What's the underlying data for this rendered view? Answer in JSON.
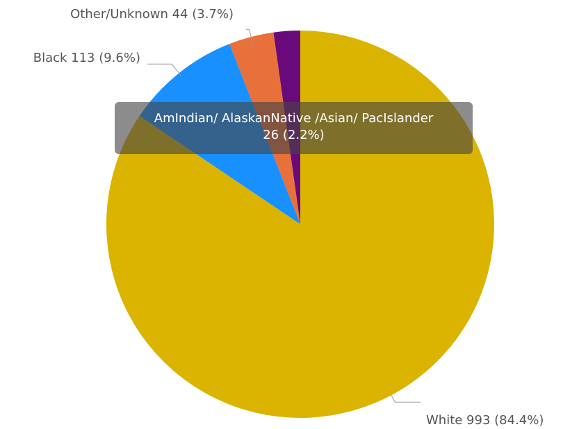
{
  "chart_data": {
    "type": "pie",
    "categories": [
      "AmIndian/ AlaskanNative /Asian/ PacIslander",
      "Other/Unknown",
      "Black",
      "White"
    ],
    "values": [
      26,
      44,
      113,
      993
    ],
    "percents": [
      "2.2%",
      "3.7%",
      "9.6%",
      "84.4%"
    ],
    "labels": [
      "",
      "Other/Unknown 44 (3.7%)",
      "Black 113 (9.6%)",
      "White 993 (84.4%)"
    ],
    "colors": [
      "#6a0a7a",
      "#e8703a",
      "#1890ff",
      "#dab400"
    ],
    "start_angle_deg": 0,
    "direction": "counterclockwise",
    "legend": "none"
  },
  "tooltip": {
    "line1": "AmIndian/ AlaskanNative /Asian/ PacIslander",
    "line2": "26 (2.2%)"
  }
}
